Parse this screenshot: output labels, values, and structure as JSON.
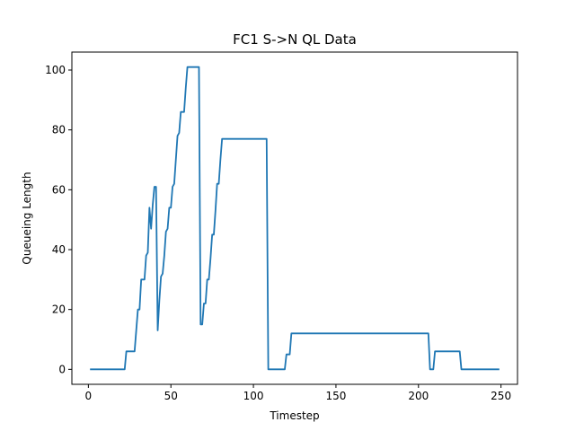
{
  "chart_data": {
    "type": "line",
    "title": "FC1 S->N QL Data",
    "xlabel": "Timestep",
    "ylabel": "Queueing Length",
    "xlim": [
      -10,
      260
    ],
    "ylim": [
      -5,
      106
    ],
    "xticks": [
      0,
      50,
      100,
      150,
      200,
      250
    ],
    "yticks": [
      0,
      20,
      40,
      60,
      80,
      100
    ],
    "grid": false,
    "line_color": "#1f77b4",
    "series": [
      {
        "x": [
          1,
          22,
          23,
          28,
          29,
          30,
          31,
          32,
          33,
          34,
          35,
          36,
          37,
          38,
          39,
          40,
          41,
          42,
          43,
          44,
          45,
          46,
          47,
          48,
          49,
          50,
          51,
          52,
          53,
          54,
          55,
          56,
          57,
          58,
          59,
          60,
          61,
          62,
          67,
          68,
          69,
          70,
          71,
          72,
          73,
          74,
          75,
          76,
          77,
          78,
          79,
          80,
          81,
          82,
          108,
          109,
          110,
          119,
          120,
          121,
          122,
          123,
          124,
          205,
          206,
          207,
          208,
          209,
          210,
          224,
          225,
          226,
          249
        ],
        "y": [
          0,
          0,
          6,
          6,
          13,
          20,
          20,
          30,
          30,
          30,
          38,
          39,
          54,
          47,
          55,
          61,
          61,
          13,
          23,
          31,
          32,
          38,
          46,
          47,
          54,
          54,
          61,
          62,
          70,
          78,
          79,
          86,
          86,
          86,
          94,
          101,
          101,
          101,
          101,
          15,
          15,
          22,
          22,
          30,
          30,
          37,
          45,
          45,
          53,
          62,
          62,
          70,
          77,
          77,
          77,
          0,
          0,
          0,
          5,
          5,
          5,
          12,
          12,
          12,
          12,
          0,
          0,
          0,
          6,
          6,
          6,
          0,
          0
        ]
      }
    ]
  }
}
